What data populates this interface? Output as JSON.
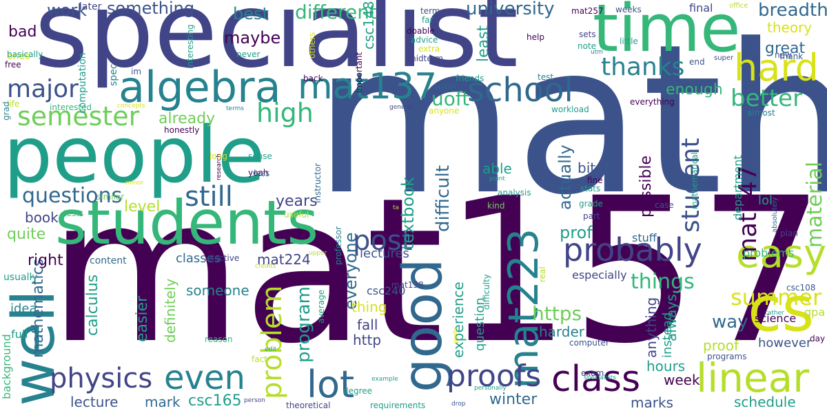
{
  "palette": {
    "dark_purple": "#440154",
    "indigo": "#3b528b",
    "blue_purple": "#414487",
    "teal_blue": "#31688e",
    "teal": "#26828e",
    "green_teal": "#1f9e89",
    "green": "#35b779",
    "light_green": "#6ece58",
    "lime": "#b5de2b",
    "yellow": "#d8e219",
    "background": "#ffffff"
  },
  "words": {
    "math": "math",
    "mat157": "mat157",
    "specialist": "specialist",
    "people": "people",
    "time": "time",
    "students": "students",
    "well": "well",
    "good": "good",
    "cs": "cs",
    "mat223": "mat223",
    "algebra": "algebra",
    "mat137": "mat137",
    "school": "school",
    "class": "class",
    "linear": "linear",
    "easy": "easy",
    "hard": "hard",
    "probably": "probably",
    "proofs": "proofs",
    "lot": "lot",
    "even": "even",
    "physics": "physics",
    "problem": "problem",
    "post": "post",
    "semester": "semester",
    "major": "major",
    "still": "still",
    "high": "high",
    "student": "student",
    "mat247": "mat247",
    "thanks": "thanks",
    "better": "better",
    "summer": "summer",
    "difficult": "difficult",
    "material": "material",
    "questions": "questions",
    "things": "things",
    "uoft": "uoft",
    "different": "different",
    "university": "university",
    "something": "something",
    "work": "work",
    "best": "best",
    "maybe": "maybe",
    "breadth": "breadth",
    "great": "great",
    "theory": "theory",
    "bad": "bad",
    "program": "program",
    "textbook": "textbook",
    "everyone": "everyone",
    "actually": "actually",
    "possible": "possible",
    "way": "way",
    "prof": "prof",
    "mathematics": "mathematics",
    "calculus": "calculus",
    "easier": "easier",
    "definitely": "definitely",
    "already": "already",
    "enough": "enough",
    "least": "least",
    "csc148": "csc148",
    "level": "level",
    "years": "years",
    "book": "book",
    "quite": "quite",
    "right": "right",
    "lecture": "lecture",
    "mark": "mark",
    "csc165": "csc165",
    "winter": "winter",
    "marks": "marks",
    "schedule": "schedule",
    "mat224": "mat224",
    "classes": "classes",
    "https": "https",
    "http": "http",
    "fall": "fall",
    "harder": "harder",
    "lectures": "lectures",
    "someone": "someone",
    "thing": "thing",
    "able": "able",
    "bit": "bit",
    "hours": "hours",
    "week": "week",
    "always": "always",
    "anything": "anything",
    "instead": "instead",
    "proof": "proof",
    "science": "science",
    "however": "however",
    "experience": "experience",
    "question": "question",
    "lol": "lol",
    "department": "department",
    "problems": "problems",
    "stuff": "stuff",
    "especially": "especially",
    "idea": "idea",
    "background": "background",
    "full": "full",
    "usually": "usually",
    "content": "content",
    "elective": "elective",
    "csc240": "csc240",
    "mat138": "mat138",
    "final": "final",
    "ones": "ones",
    "later": "later",
    "spec": "spec",
    "computation": "computation",
    "interesting": "interesting",
    "others": "others",
    "important": "important",
    "doable": "doable",
    "far": "far",
    "advice": "advice",
    "extra": "extra",
    "midterm": "midterm",
    "term": "term",
    "help": "help",
    "sets": "sets",
    "note": "note",
    "utm": "utm",
    "weeks": "weeks",
    "mat257": "mat257",
    "office": "office",
    "little": "little",
    "end": "end",
    "super": "super",
    "thank": "thank",
    "new": "new",
    "basically": "basically",
    "free": "free",
    "never": "never",
    "im": "im",
    "back": "back",
    "friends": "friends",
    "option": "option",
    "test": "test",
    "workload": "workload",
    "everything": "everything",
    "almost": "almost",
    "life": "life",
    "grad": "grad",
    "interested": "interested",
    "concepts": "concepts",
    "terms": "terms",
    "general": "general",
    "anyone": "anyone",
    "honestly": "honestly",
    "long": "long",
    "sense": "sense",
    "yeah": "yeah",
    "less": "less",
    "research": "research",
    "instructor": "instructor",
    "minor": "minor",
    "similar": "similar",
    "tests": "tests",
    "useful": "useful",
    "professor": "professor",
    "analysis": "analysis",
    "kind": "kind",
    "point": "point",
    "fine": "fine",
    "stats": "stats",
    "grade": "grade",
    "part": "part",
    "case": "case",
    "mathematical": "mathematical",
    "absolutely": "absolutely",
    "plan": "plan",
    "upper": "upper",
    "credits": "credits",
    "real": "real",
    "difficulty": "difficulty",
    "average": "average",
    "reason": "reason",
    "edit": "edit",
    "fact": "fact",
    "person": "person",
    "degree": "degree",
    "example": "example",
    "theoretical": "theoretical",
    "requirements": "requirements",
    "drop": "drop",
    "profs": "profs",
    "personally": "personally",
    "exam": "exam",
    "specialists": "specialists",
    "computer": "computer",
    "programs": "programs",
    "csc108": "csc108",
    "rather": "rather",
    "gpa": "gpa",
    "day": "day",
    "ta": "ta"
  }
}
